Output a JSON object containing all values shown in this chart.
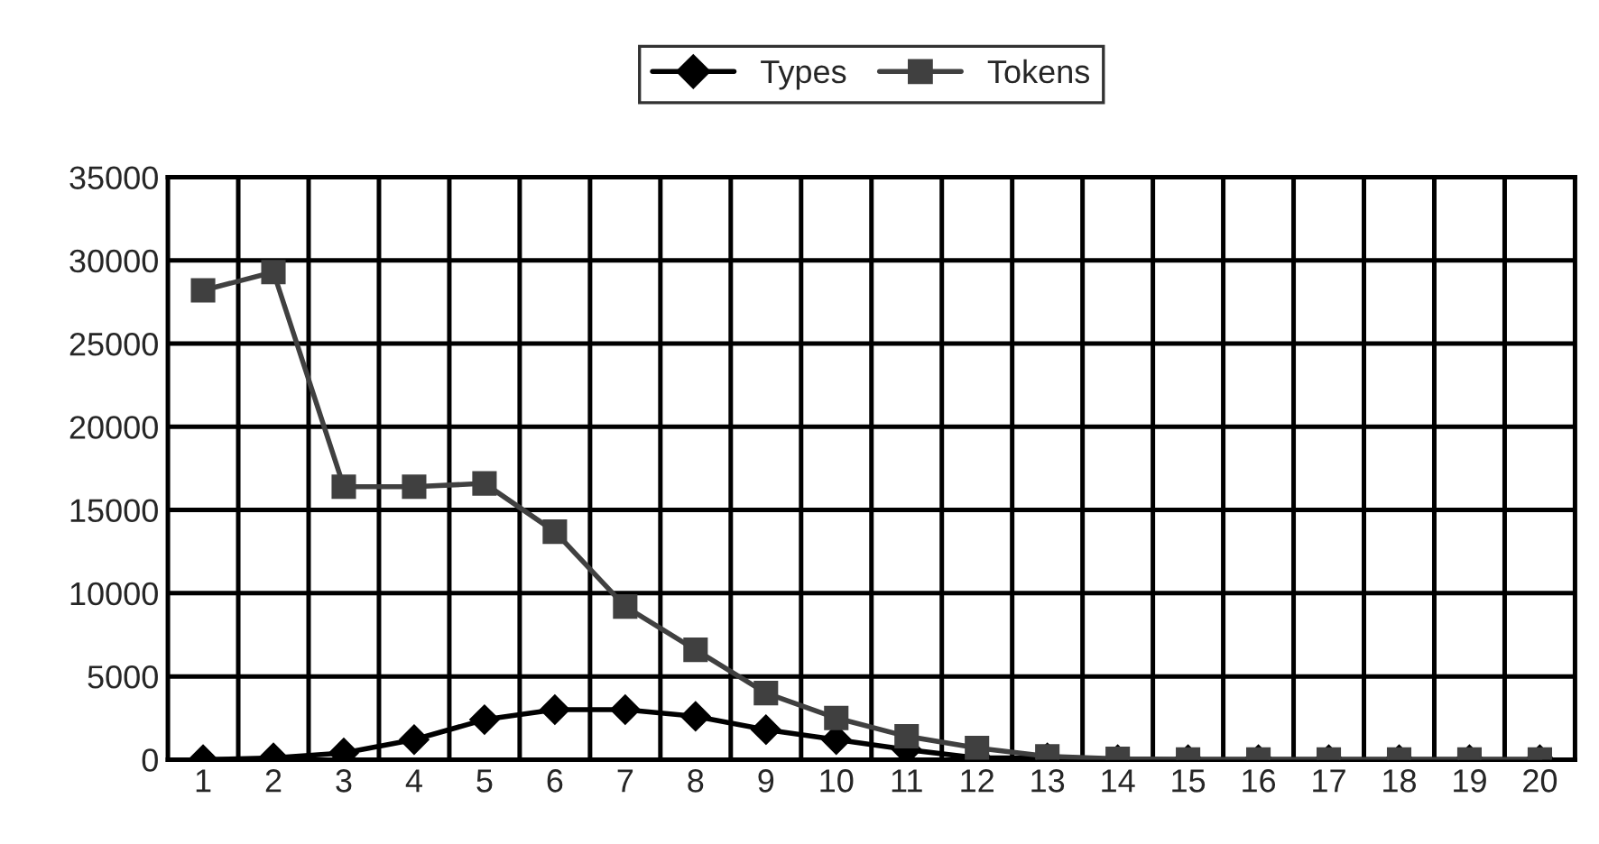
{
  "chart_data": {
    "type": "line",
    "categories": [
      "1",
      "2",
      "3",
      "4",
      "5",
      "6",
      "7",
      "8",
      "9",
      "10",
      "11",
      "12",
      "13",
      "14",
      "15",
      "16",
      "17",
      "18",
      "19",
      "20"
    ],
    "series": [
      {
        "name": "Types",
        "color": "#000000",
        "marker": "diamond",
        "values": [
          0,
          100,
          400,
          1200,
          2400,
          3000,
          3000,
          2600,
          1800,
          1200,
          600,
          100,
          100,
          0,
          0,
          0,
          0,
          0,
          0,
          0
        ]
      },
      {
        "name": "Tokens",
        "color": "#404040",
        "marker": "square",
        "values": [
          28200,
          29300,
          16400,
          16400,
          16600,
          13700,
          9200,
          6600,
          4000,
          2500,
          1400,
          700,
          200,
          50,
          0,
          0,
          0,
          0,
          0,
          0
        ]
      }
    ],
    "ylim": [
      0,
      35000
    ],
    "yticks": [
      0,
      5000,
      10000,
      15000,
      20000,
      25000,
      30000,
      35000
    ],
    "grid": true,
    "legend": "top",
    "line_style": "solid"
  }
}
